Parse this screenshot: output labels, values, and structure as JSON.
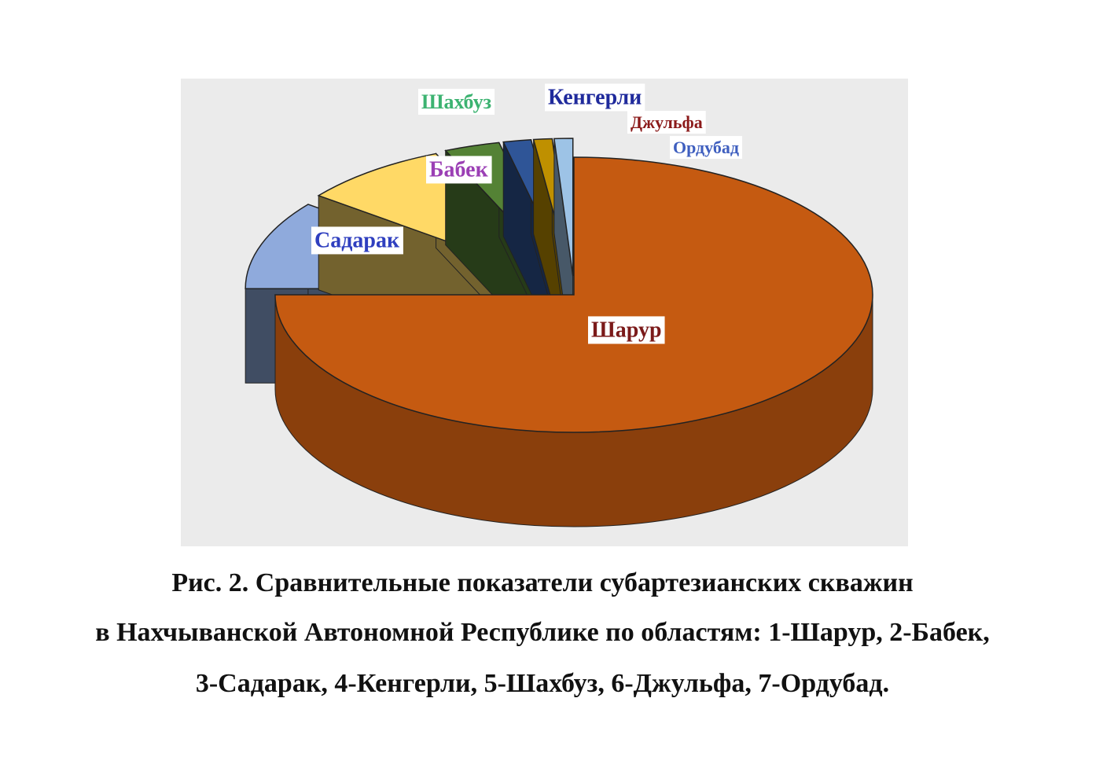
{
  "chart_data": {
    "type": "pie",
    "categories": [
      "Шарур",
      "Садарак",
      "Бабек",
      "Шахбуз",
      "Кенгерли",
      "Джульфа",
      "Ордубад"
    ],
    "values": [
      75,
      10.5,
      8,
      3,
      1.5,
      1,
      1
    ],
    "colors": [
      "#c55a11",
      "#8faadc",
      "#ffd966",
      "#548235",
      "#2f5597",
      "#bf9000",
      "#9dc3e6"
    ],
    "label_colors": [
      "#7b1a1a",
      "#2f3fbf",
      "#9b3fb5",
      "#3cb371",
      "#1f2a9c",
      "#8b1a1a",
      "#3f5fbf"
    ],
    "caption": [
      "Рис. 2. Сравнительные показатели субартезианских скважин",
      "в Нахчыванской Автономной Республике по областям: 1-Шарур, 2-Бабек,",
      "3-Садарак, 4-Кенгерли, 5-Шахбуз, 6-Джульфа, 7-Ордубад."
    ]
  }
}
